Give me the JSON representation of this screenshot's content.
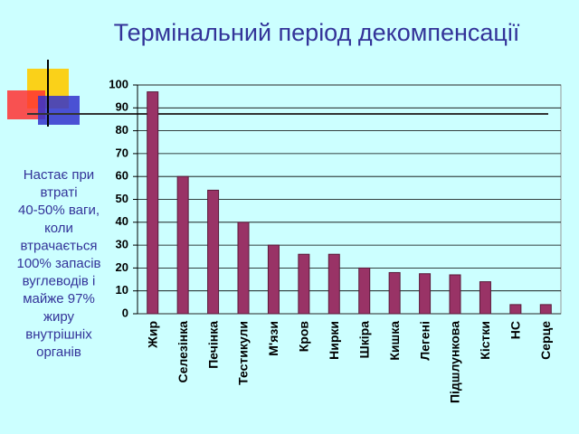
{
  "chart_data": {
    "type": "bar",
    "title": "Термінальний період декомпенсації",
    "annotation_lines": [
      "Настає при",
      "втраті",
      "40-50% ваги,",
      "коли",
      "втрачається",
      "100% запасів",
      "вуглеводів і",
      "майже 97%",
      "жиру",
      "внутрішніх",
      "органів"
    ],
    "categories": [
      "Жир",
      "Селезінка",
      "Печінка",
      "Тестикули",
      "М'язи",
      "Кров",
      "Нирки",
      "Шкіра",
      "Кишка",
      "Легені",
      "Підшлункова",
      "Кістки",
      "НС",
      "Серце"
    ],
    "values": [
      97,
      60,
      54,
      40,
      30,
      26,
      26,
      20,
      18,
      17.5,
      17,
      14,
      4,
      4
    ],
    "color": "#993366",
    "ylim": [
      0,
      100
    ],
    "yticks": [
      0,
      10,
      20,
      30,
      40,
      50,
      60,
      70,
      80,
      90,
      100
    ],
    "grid": true
  }
}
